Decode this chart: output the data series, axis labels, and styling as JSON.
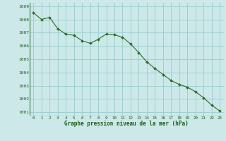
{
  "x": [
    0,
    1,
    2,
    3,
    4,
    5,
    6,
    7,
    8,
    9,
    10,
    11,
    12,
    13,
    14,
    15,
    16,
    17,
    18,
    19,
    20,
    21,
    22,
    23
  ],
  "y": [
    1008.5,
    1008.0,
    1008.15,
    1007.3,
    1006.9,
    1006.8,
    1006.4,
    1006.2,
    1006.5,
    1006.9,
    1006.85,
    1006.65,
    1006.15,
    1005.5,
    1004.8,
    1004.3,
    1003.85,
    1003.4,
    1003.1,
    1002.9,
    1002.55,
    1002.1,
    1001.55,
    1001.1
  ],
  "line_color": "#2d6a2d",
  "marker_color": "#2d6a2d",
  "bg_color": "#cce8e8",
  "grid_color": "#99cccc",
  "xlabel": "Graphe pression niveau de la mer (hPa)",
  "xlabel_color": "#1a5c1a",
  "tick_color": "#1a5c1a",
  "ylim": [
    1000.75,
    1009.25
  ],
  "yticks": [
    1001,
    1002,
    1003,
    1004,
    1005,
    1006,
    1007,
    1008,
    1009
  ],
  "xlim": [
    -0.5,
    23.5
  ],
  "xticks": [
    0,
    1,
    2,
    3,
    4,
    5,
    6,
    7,
    8,
    9,
    10,
    11,
    12,
    13,
    14,
    15,
    16,
    17,
    18,
    19,
    20,
    21,
    22,
    23
  ]
}
